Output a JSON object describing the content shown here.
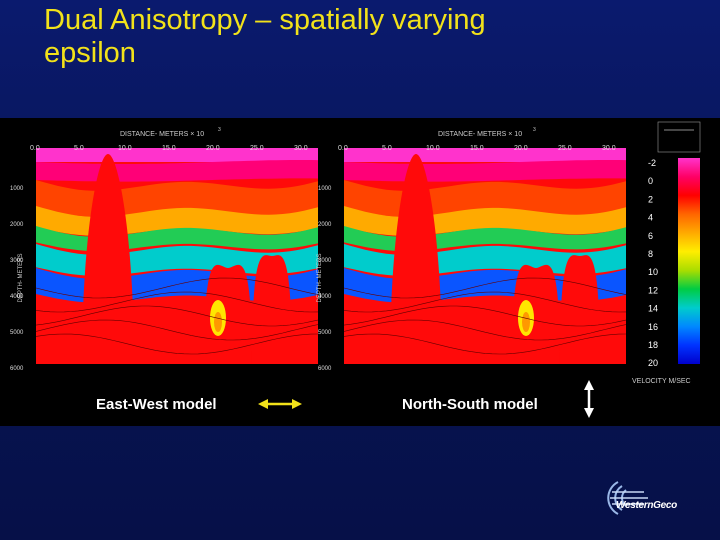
{
  "slide": {
    "title_line1": "Dual Anisotropy – spatially varying",
    "title_line2": "epsilon"
  },
  "figure": {
    "distance_axis_label": "DISTANCE- METERS × 10",
    "distance_axis_exponent": "3",
    "depth_axis_label": "DEPTH- METERS",
    "x_ticks": [
      "0.0",
      "5.0",
      "10.0",
      "15.0",
      "20.0",
      "25.0",
      "30.0"
    ],
    "y_ticks": [
      "1000",
      "2000",
      "3000",
      "4000",
      "5000",
      "6000"
    ],
    "velocity_label": "VELOCITY  M/SEC"
  },
  "colorbar": {
    "ticks": [
      "-2",
      "0",
      "2",
      "4",
      "6",
      "8",
      "10",
      "12",
      "14",
      "16",
      "18",
      "20"
    ],
    "stops": [
      "#ff33cc",
      "#ff0066",
      "#ff0000",
      "#ff6600",
      "#ffaa00",
      "#ffee00",
      "#aadd00",
      "#00cc44",
      "#00cccc",
      "#0088ff",
      "#0033ff",
      "#0000cc"
    ]
  },
  "models": {
    "left_label": "East-West model",
    "right_label": "North-South model"
  },
  "logo": {
    "text": "WesternGeco"
  },
  "colors": {
    "title": "#f2e21a",
    "background": "#081556"
  }
}
